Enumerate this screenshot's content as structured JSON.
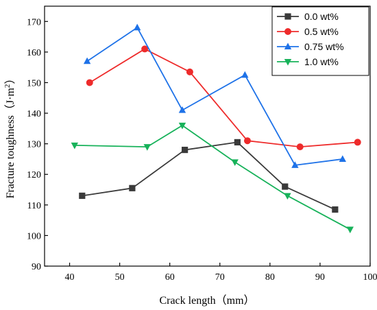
{
  "chart_data": {
    "type": "line",
    "xlabel": "Crack length（mm）",
    "ylabel": "Fracture toughness（J·m",
    "ylabel_sup": "2",
    "ylabel_end": "）",
    "xlim": [
      35,
      100
    ],
    "ylim": [
      90,
      175
    ],
    "xticks": [
      40,
      50,
      60,
      70,
      80,
      90,
      100
    ],
    "yticks": [
      90,
      100,
      110,
      120,
      130,
      140,
      150,
      160,
      170
    ],
    "grid": false,
    "legend_position": "top-right",
    "series": [
      {
        "name": "0.0 wt%",
        "color": "#3a3a3a",
        "marker": "square",
        "x": [
          42.5,
          52.5,
          63,
          73.5,
          83,
          93
        ],
        "y": [
          113,
          115.5,
          128,
          130.5,
          116,
          108.5
        ]
      },
      {
        "name": "0.5 wt%",
        "color": "#ee2b2b",
        "marker": "circle",
        "x": [
          44,
          55,
          64,
          75.5,
          86,
          97.5
        ],
        "y": [
          150,
          161,
          153.5,
          131,
          129,
          130.5
        ]
      },
      {
        "name": "0.75 wt%",
        "color": "#1e72e8",
        "marker": "triangle-up",
        "x": [
          43.5,
          53.5,
          62.5,
          75,
          85,
          94.5
        ],
        "y": [
          157,
          168,
          141,
          152.5,
          123,
          125
        ]
      },
      {
        "name": "1.0 wt%",
        "color": "#17b25a",
        "marker": "triangle-down",
        "x": [
          41,
          55.5,
          62.5,
          73,
          83.5,
          96
        ],
        "y": [
          129.5,
          129,
          136,
          124,
          113,
          102
        ]
      }
    ]
  }
}
